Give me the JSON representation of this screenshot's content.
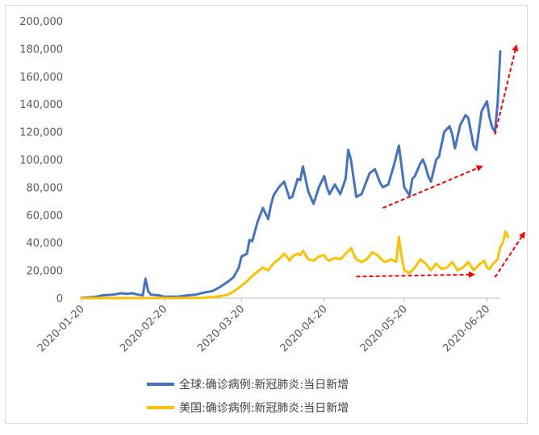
{
  "chart_data": {
    "type": "line",
    "x_start": "2020-01-20",
    "x_end": "2020-06-25",
    "x_tick_labels": [
      "2020-01-20",
      "2020-02-20",
      "2020-03-20",
      "2020-04-20",
      "2020-05-20",
      "2020-06-20"
    ],
    "y_tick_labels": [
      "0",
      "20,000",
      "40,000",
      "60,000",
      "80,000",
      "100,000",
      "120,000",
      "140,000",
      "160,000",
      "180,000",
      "200,000"
    ],
    "ylim": [
      0,
      200000
    ],
    "grid": false,
    "legend_position": "bottom",
    "series": [
      {
        "name": "全球:确诊病例:新冠肺炎:当日新增",
        "color": "#4472c4",
        "points": [
          [
            "2020-01-20",
            200
          ],
          [
            "2020-01-25",
            800
          ],
          [
            "2020-01-28",
            2000
          ],
          [
            "2020-02-01",
            2500
          ],
          [
            "2020-02-04",
            3500
          ],
          [
            "2020-02-06",
            3000
          ],
          [
            "2020-02-08",
            3500
          ],
          [
            "2020-02-10",
            2500
          ],
          [
            "2020-02-12",
            2000
          ],
          [
            "2020-02-13",
            14000
          ],
          [
            "2020-02-14",
            5000
          ],
          [
            "2020-02-15",
            2500
          ],
          [
            "2020-02-18",
            2000
          ],
          [
            "2020-02-20",
            1000
          ],
          [
            "2020-02-25",
            1000
          ],
          [
            "2020-02-29",
            2000
          ],
          [
            "2020-03-03",
            2500
          ],
          [
            "2020-03-06",
            4000
          ],
          [
            "2020-03-09",
            5000
          ],
          [
            "2020-03-12",
            8000
          ],
          [
            "2020-03-15",
            12000
          ],
          [
            "2020-03-17",
            15000
          ],
          [
            "2020-03-19",
            22000
          ],
          [
            "2020-03-20",
            30000
          ],
          [
            "2020-03-22",
            32000
          ],
          [
            "2020-03-23",
            42000
          ],
          [
            "2020-03-24",
            41000
          ],
          [
            "2020-03-26",
            55000
          ],
          [
            "2020-03-28",
            65000
          ],
          [
            "2020-03-30",
            57000
          ],
          [
            "2020-03-31",
            67000
          ],
          [
            "2020-04-01",
            74000
          ],
          [
            "2020-04-03",
            80000
          ],
          [
            "2020-04-05",
            84000
          ],
          [
            "2020-04-06",
            78000
          ],
          [
            "2020-04-07",
            72000
          ],
          [
            "2020-04-08",
            73000
          ],
          [
            "2020-04-10",
            86000
          ],
          [
            "2020-04-11",
            85000
          ],
          [
            "2020-04-12",
            95000
          ],
          [
            "2020-04-14",
            77000
          ],
          [
            "2020-04-16",
            68000
          ],
          [
            "2020-04-18",
            80000
          ],
          [
            "2020-04-20",
            88000
          ],
          [
            "2020-04-21",
            80000
          ],
          [
            "2020-04-22",
            75000
          ],
          [
            "2020-04-24",
            82000
          ],
          [
            "2020-04-26",
            75000
          ],
          [
            "2020-04-28",
            86000
          ],
          [
            "2020-04-29",
            107000
          ],
          [
            "2020-04-30",
            100000
          ],
          [
            "2020-05-02",
            73000
          ],
          [
            "2020-05-04",
            75000
          ],
          [
            "2020-05-07",
            90000
          ],
          [
            "2020-05-09",
            93000
          ],
          [
            "2020-05-11",
            83000
          ],
          [
            "2020-05-12",
            80000
          ],
          [
            "2020-05-14",
            82000
          ],
          [
            "2020-05-16",
            95000
          ],
          [
            "2020-05-18",
            110000
          ],
          [
            "2020-05-19",
            95000
          ],
          [
            "2020-05-20",
            80000
          ],
          [
            "2020-05-22",
            74000
          ],
          [
            "2020-05-23",
            86000
          ],
          [
            "2020-05-24",
            88000
          ],
          [
            "2020-05-26",
            97000
          ],
          [
            "2020-05-27",
            100000
          ],
          [
            "2020-05-28",
            95000
          ],
          [
            "2020-05-29",
            88000
          ],
          [
            "2020-05-30",
            84000
          ],
          [
            "2020-06-01",
            100000
          ],
          [
            "2020-06-02",
            102000
          ],
          [
            "2020-06-04",
            120000
          ],
          [
            "2020-06-06",
            124000
          ],
          [
            "2020-06-07",
            118000
          ],
          [
            "2020-06-08",
            108000
          ],
          [
            "2020-06-10",
            125000
          ],
          [
            "2020-06-12",
            132000
          ],
          [
            "2020-06-13",
            130000
          ],
          [
            "2020-06-15",
            110000
          ],
          [
            "2020-06-16",
            107000
          ],
          [
            "2020-06-18",
            135000
          ],
          [
            "2020-06-20",
            142000
          ],
          [
            "2020-06-21",
            130000
          ],
          [
            "2020-06-22",
            123000
          ],
          [
            "2020-06-23",
            120000
          ],
          [
            "2020-06-24",
            140000
          ],
          [
            "2020-06-25",
            178000
          ]
        ]
      },
      {
        "name": "美国:确诊病例:新冠肺炎:当日新增",
        "color": "#ffc000",
        "points": [
          [
            "2020-01-20",
            0
          ],
          [
            "2020-02-20",
            0
          ],
          [
            "2020-03-05",
            200
          ],
          [
            "2020-03-10",
            800
          ],
          [
            "2020-03-14",
            2000
          ],
          [
            "2020-03-16",
            3500
          ],
          [
            "2020-03-18",
            6000
          ],
          [
            "2020-03-20",
            9000
          ],
          [
            "2020-03-22",
            12000
          ],
          [
            "2020-03-24",
            16000
          ],
          [
            "2020-03-26",
            19000
          ],
          [
            "2020-03-28",
            22000
          ],
          [
            "2020-03-30",
            20000
          ],
          [
            "2020-04-01",
            25000
          ],
          [
            "2020-04-03",
            28000
          ],
          [
            "2020-04-05",
            32000
          ],
          [
            "2020-04-06",
            30000
          ],
          [
            "2020-04-07",
            27000
          ],
          [
            "2020-04-08",
            30000
          ],
          [
            "2020-04-10",
            32000
          ],
          [
            "2020-04-11",
            31000
          ],
          [
            "2020-04-12",
            34000
          ],
          [
            "2020-04-14",
            28000
          ],
          [
            "2020-04-16",
            27000
          ],
          [
            "2020-04-18",
            30000
          ],
          [
            "2020-04-20",
            31000
          ],
          [
            "2020-04-21",
            28000
          ],
          [
            "2020-04-22",
            27000
          ],
          [
            "2020-04-24",
            29000
          ],
          [
            "2020-04-26",
            28000
          ],
          [
            "2020-04-28",
            32000
          ],
          [
            "2020-04-30",
            36000
          ],
          [
            "2020-05-02",
            28000
          ],
          [
            "2020-05-04",
            26000
          ],
          [
            "2020-05-06",
            28000
          ],
          [
            "2020-05-08",
            33000
          ],
          [
            "2020-05-10",
            31000
          ],
          [
            "2020-05-12",
            27000
          ],
          [
            "2020-05-13",
            26000
          ],
          [
            "2020-05-15",
            28000
          ],
          [
            "2020-05-17",
            26000
          ],
          [
            "2020-05-18",
            44000
          ],
          [
            "2020-05-19",
            30000
          ],
          [
            "2020-05-20",
            20000
          ],
          [
            "2020-05-22",
            18000
          ],
          [
            "2020-05-24",
            22000
          ],
          [
            "2020-05-26",
            28000
          ],
          [
            "2020-05-28",
            25000
          ],
          [
            "2020-05-30",
            20000
          ],
          [
            "2020-06-01",
            25000
          ],
          [
            "2020-06-03",
            21000
          ],
          [
            "2020-06-05",
            22000
          ],
          [
            "2020-06-07",
            26000
          ],
          [
            "2020-06-09",
            20000
          ],
          [
            "2020-06-11",
            22000
          ],
          [
            "2020-06-13",
            26000
          ],
          [
            "2020-06-15",
            20000
          ],
          [
            "2020-06-17",
            24000
          ],
          [
            "2020-06-19",
            27000
          ],
          [
            "2020-06-20",
            22000
          ],
          [
            "2020-06-21",
            21000
          ],
          [
            "2020-06-22",
            24000
          ],
          [
            "2020-06-23",
            26000
          ],
          [
            "2020-06-24",
            28000
          ],
          [
            "2020-06-25",
            37000
          ],
          [
            "2020-06-26",
            40000
          ],
          [
            "2020-06-27",
            48000
          ],
          [
            "2020-06-28",
            44000
          ]
        ]
      }
    ],
    "annotations": [
      {
        "type": "arrow",
        "color": "#ff0000",
        "style": "dashed",
        "from": [
          "2020-05-12",
          65000
        ],
        "to": [
          "2020-06-18",
          95000
        ]
      },
      {
        "type": "arrow",
        "color": "#ff0000",
        "style": "dashed",
        "from": [
          "2020-06-23",
          118000
        ],
        "to": [
          "2020-07-01",
          182000
        ]
      },
      {
        "type": "arrow",
        "color": "#ff0000",
        "style": "dashed",
        "from": [
          "2020-05-02",
          15500
        ],
        "to": [
          "2020-06-15",
          17000
        ]
      },
      {
        "type": "arrow",
        "color": "#ff0000",
        "style": "dashed",
        "from": [
          "2020-06-23",
          15000
        ],
        "to": [
          "2020-07-04",
          47000
        ]
      }
    ]
  }
}
